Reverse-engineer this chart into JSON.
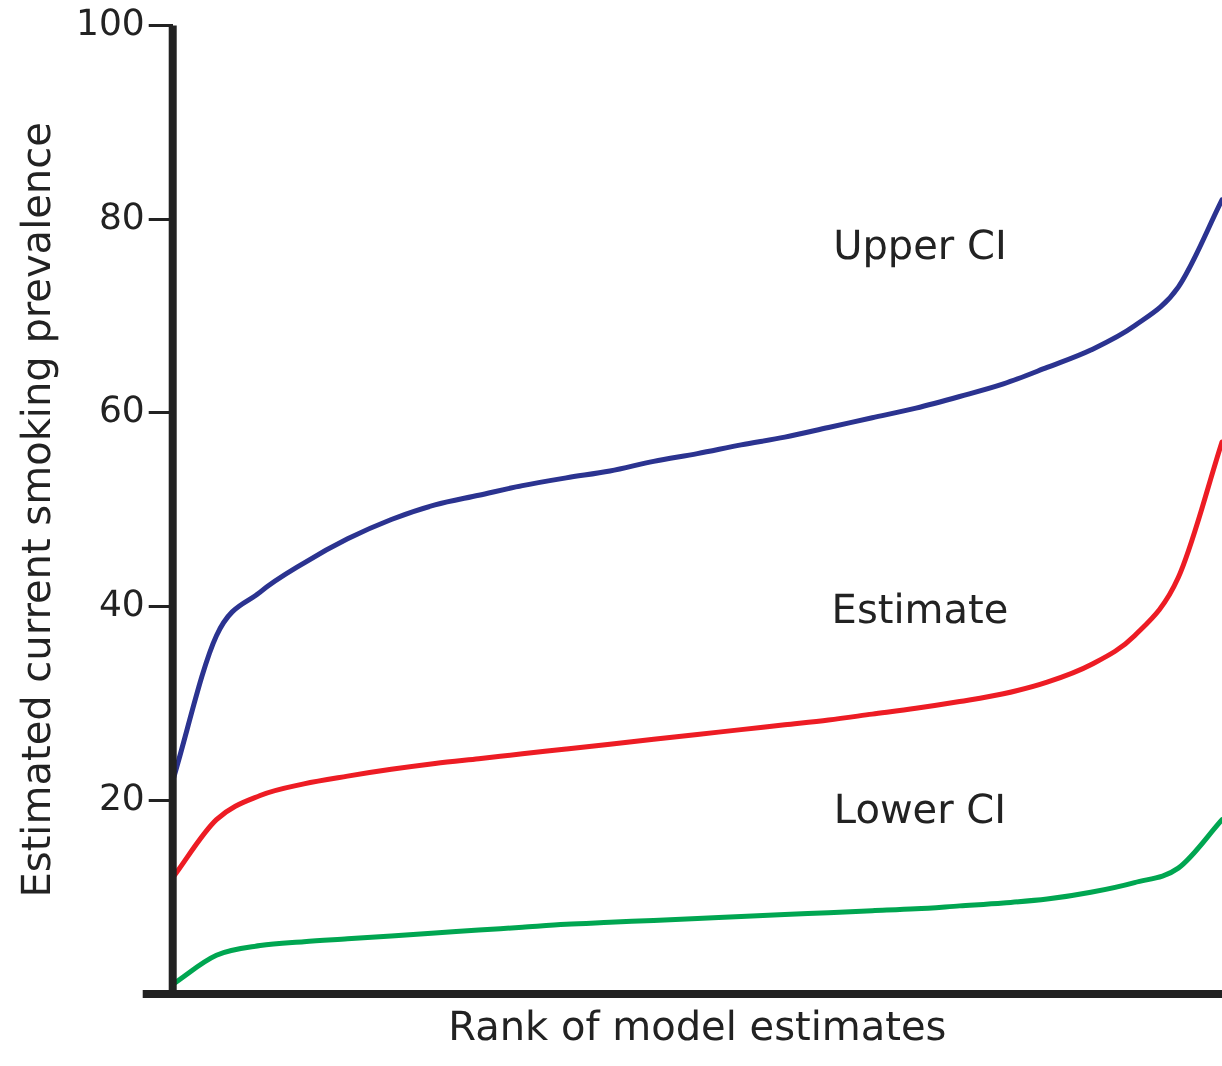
{
  "chart_data": {
    "type": "line",
    "xlabel": "Rank of model estimates",
    "ylabel": "Estimated current smoking prevalence",
    "categories": [
      null,
      null,
      null,
      null,
      null,
      null,
      null,
      null,
      null,
      null,
      null,
      null,
      null,
      null,
      null,
      null,
      null,
      null,
      null,
      null,
      null,
      null,
      null,
      null,
      null
    ],
    "series": [
      {
        "name": "Upper CI",
        "color": "#2b3390",
        "values": [
          22,
          37,
          41.5,
          44.5,
          47,
          49,
          50.5,
          51.5,
          52.5,
          53.3,
          54,
          55,
          55.8,
          56.7,
          57.5,
          58.5,
          59.5,
          60.5,
          61.7,
          63,
          64.7,
          66.5,
          69,
          73,
          82
        ]
      },
      {
        "name": "Estimate",
        "color": "#ed1c24",
        "values": [
          12,
          18,
          20.5,
          21.7,
          22.5,
          23.2,
          23.8,
          24.3,
          24.8,
          25.3,
          25.8,
          26.3,
          26.8,
          27.3,
          27.8,
          28.3,
          28.9,
          29.5,
          30.2,
          31,
          32.2,
          34,
          37,
          43,
          57
        ]
      },
      {
        "name": "Lower CI",
        "color": "#00a651",
        "values": [
          1,
          4,
          5,
          5.4,
          5.7,
          6,
          6.3,
          6.6,
          6.9,
          7.2,
          7.4,
          7.6,
          7.8,
          8,
          8.2,
          8.4,
          8.6,
          8.8,
          9.1,
          9.4,
          9.8,
          10.5,
          11.5,
          13,
          18
        ]
      }
    ],
    "ylim": [
      0,
      100
    ],
    "yticks": [
      {
        "value": 0,
        "label": null
      },
      20,
      40,
      60,
      80,
      100
    ],
    "tick_labels": "y",
    "grid": false,
    "legend": false,
    "marker": "none",
    "line_style": "solid"
  }
}
